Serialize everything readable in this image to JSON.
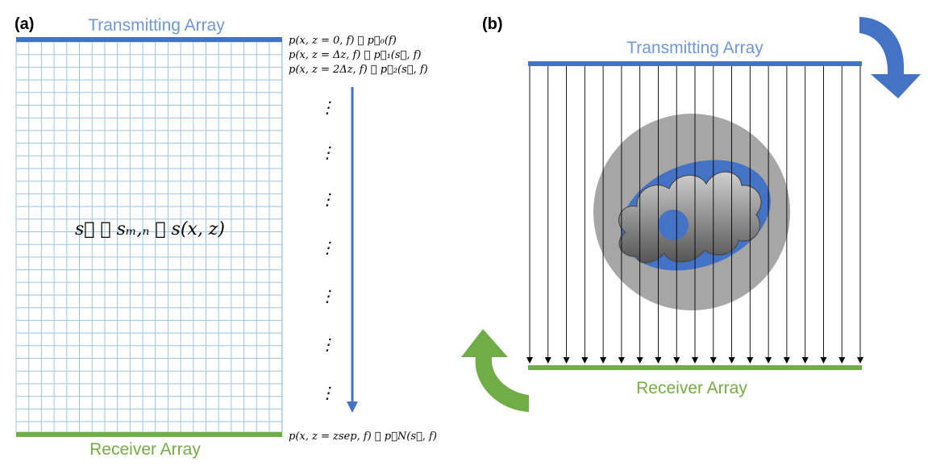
{
  "panel_a": {
    "label": "(a)",
    "transmitter_label": "Transmitting Array",
    "receiver_label": "Receiver Array",
    "grid_equation": "s⃗ ≝ sₘ,ₙ ≝ s(x, z)",
    "field_equations": [
      "p(x, z = 0, f) ≝ p⃗₀(f)",
      "p(x, z = Δz, f) ≝ p⃗₁(s⃗, f)",
      "p(x, z = 2Δz, f) ≝ p⃗₂(s⃗, f)"
    ],
    "final_equation": "p(x, z = zsep, f) ≝ p⃗N(s⃗, f)",
    "ellipsis": "⋮"
  },
  "panel_b": {
    "label": "(b)",
    "transmitter_label": "Transmitting Array",
    "receiver_label": "Receiver Array"
  },
  "colors": {
    "transmitter": "#4472c4",
    "receiver": "#70ad47",
    "grid": "#9dc3e6",
    "arrow_green": "#70ad47",
    "arrow_blue": "#4472c4",
    "gray_disc": "#a6a6a6"
  }
}
